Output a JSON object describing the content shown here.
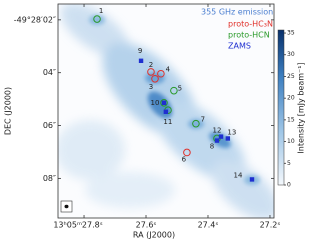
{
  "chart_data": {
    "type": "image",
    "xlabel": "RA (J2000)",
    "ylabel": "DEC (J2000)",
    "xlim": [
      27.884,
      27.187
    ],
    "ylim": [
      1.4,
      9.5
    ],
    "xticks": [
      {
        "value": 27.8,
        "label": "13ʰ05ᵐ27.8ˢ"
      },
      {
        "value": 27.6,
        "label": "27.6ˢ"
      },
      {
        "value": 27.4,
        "label": "27.4ˢ"
      },
      {
        "value": 27.2,
        "label": "27.2ˢ"
      }
    ],
    "yticks": [
      {
        "value": 2,
        "label": "-49°28′02″"
      },
      {
        "value": 4,
        "label": "04″"
      },
      {
        "value": 6,
        "label": "06″"
      },
      {
        "value": 8,
        "label": "08″"
      }
    ],
    "legend_title": "355 GHz emission",
    "series": [
      {
        "name": "proto-HC₃N",
        "color": "#e0302a",
        "marker": "circle",
        "x": [
          27.584,
          27.571,
          27.552,
          27.468
        ],
        "y": [
          3.97,
          4.23,
          4.04,
          7.02
        ]
      },
      {
        "name": "proto-HCN",
        "color": "#2a9a2a",
        "marker": "circle",
        "x": [
          27.758,
          27.51,
          27.542,
          27.529,
          27.439,
          27.371
        ],
        "y": [
          1.97,
          4.68,
          5.14,
          5.42,
          5.93,
          6.49
        ]
      },
      {
        "name": "ZAMS",
        "color": "#1f2fd0",
        "marker": "square",
        "x": [
          27.616,
          27.542,
          27.536,
          27.358,
          27.336,
          27.371,
          27.258
        ],
        "y": [
          3.55,
          5.14,
          5.48,
          6.42,
          6.49,
          6.57,
          8.04
        ]
      }
    ],
    "sources": {
      "labels": [
        "1",
        "2",
        "3",
        "4",
        "5",
        "6",
        "7",
        "8",
        "9",
        "10",
        "11",
        "12",
        "13",
        "14"
      ],
      "x": [
        27.758,
        27.584,
        27.571,
        27.552,
        27.51,
        27.468,
        27.439,
        27.371,
        27.616,
        27.542,
        27.536,
        27.358,
        27.336,
        27.258
      ],
      "y": [
        1.97,
        3.97,
        4.23,
        4.04,
        4.68,
        7.02,
        5.93,
        6.57,
        3.55,
        5.14,
        5.48,
        6.42,
        6.49,
        8.04
      ]
    },
    "colorbar": {
      "label": "Intensity [mJy beam⁻¹]",
      "lim": [
        0,
        35.7
      ],
      "ticks": [
        0,
        5,
        10,
        15,
        20,
        25,
        30,
        35
      ]
    }
  }
}
